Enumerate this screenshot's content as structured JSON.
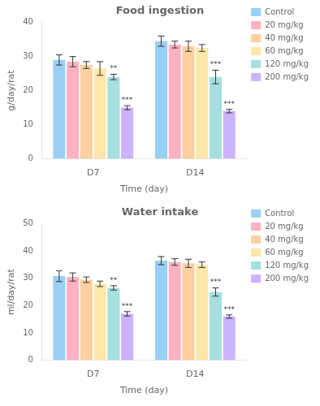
{
  "chart_data": [
    {
      "type": "bar",
      "title": "Food ingestion",
      "xlabel": "Time (day)",
      "ylabel": "g/day/rat",
      "categories": [
        "D7",
        "D14"
      ],
      "series": [
        {
          "name": "Control",
          "values": [
            29.0,
            34.5
          ],
          "errors": [
            1.5,
            1.5
          ]
        },
        {
          "name": "20 mg/kg",
          "values": [
            28.5,
            33.5
          ],
          "errors": [
            1.5,
            1.0
          ]
        },
        {
          "name": "40 mg/kg",
          "values": [
            27.5,
            33.0
          ],
          "errors": [
            1.0,
            1.5
          ]
        },
        {
          "name": "60 mg/kg",
          "values": [
            26.5,
            32.5
          ],
          "errors": [
            2.0,
            1.0
          ]
        },
        {
          "name": "120 mg/kg",
          "values": [
            24.0,
            24.0
          ],
          "errors": [
            0.8,
            2.0
          ],
          "annotations": [
            "**",
            "***"
          ]
        },
        {
          "name": "200 mg/kg",
          "values": [
            15.0,
            14.0
          ],
          "errors": [
            0.6,
            0.5
          ],
          "annotations": [
            "***",
            "***"
          ]
        }
      ],
      "ylim": [
        0,
        40
      ],
      "yticks": [
        0,
        10,
        20,
        30,
        40
      ],
      "grid": false,
      "legend": "right"
    },
    {
      "type": "bar",
      "title": "Water intake",
      "xlabel": "Time (day)",
      "ylabel": "ml/day/rat",
      "categories": [
        "D7",
        "D14"
      ],
      "series": [
        {
          "name": "Control",
          "values": [
            30.8,
            36.5
          ],
          "errors": [
            2.0,
            1.5
          ]
        },
        {
          "name": "20 mg/kg",
          "values": [
            30.5,
            36.0
          ],
          "errors": [
            1.5,
            1.2
          ]
        },
        {
          "name": "40 mg/kg",
          "values": [
            29.5,
            35.5
          ],
          "errors": [
            1.0,
            1.5
          ]
        },
        {
          "name": "60 mg/kg",
          "values": [
            28.0,
            35.0
          ],
          "errors": [
            1.0,
            1.0
          ]
        },
        {
          "name": "120 mg/kg",
          "values": [
            26.5,
            25.0
          ],
          "errors": [
            0.8,
            1.5
          ],
          "annotations": [
            "**",
            "***"
          ]
        },
        {
          "name": "200 mg/kg",
          "values": [
            17.0,
            16.0
          ],
          "errors": [
            0.8,
            0.6
          ],
          "annotations": [
            "***",
            "***"
          ]
        }
      ],
      "ylim": [
        0,
        50
      ],
      "yticks": [
        0,
        10,
        20,
        30,
        40,
        50
      ],
      "grid": false,
      "legend": "right"
    }
  ]
}
